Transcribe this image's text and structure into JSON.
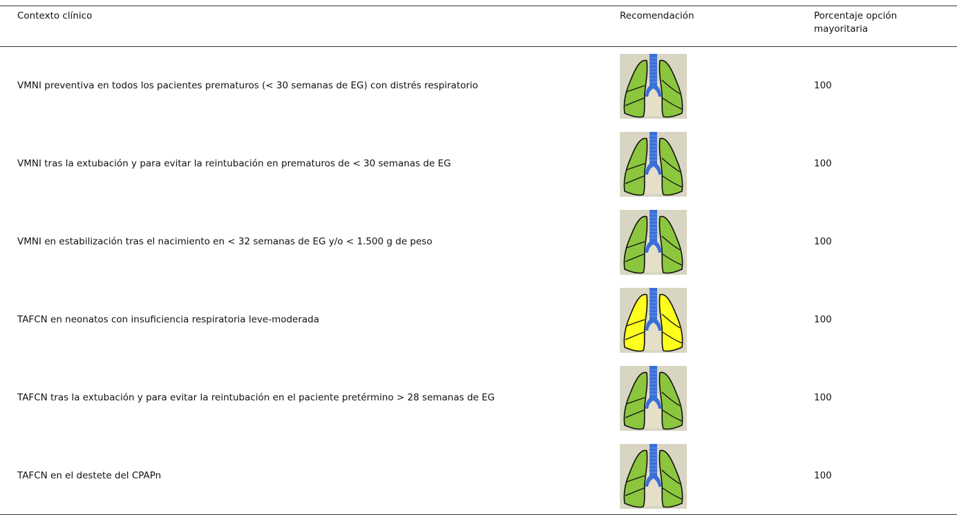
{
  "table": {
    "header": [
      "Contexto clínico",
      "Recomendación",
      "Porcentaje opción mayoritaria"
    ],
    "rows": [
      {
        "context": "VMNI preventiva en todos los pacientes prematuros (< 30 semanas de EG) con distrés respiratorio",
        "icon_color": "#8cc63f",
        "percentage": 100
      },
      {
        "context": "VMNI tras la extubación y para evitar la reintubación en prematuros de < 30 semanas de EG",
        "icon_color": "#8cc63f",
        "percentage": 100
      },
      {
        "context": "VMNI en estabilización tras el nacimiento en < 32 semanas de EG y/o < 1.500 g de peso",
        "icon_color": "#8cc63f",
        "percentage": 100
      },
      {
        "context": "TAFCN en neonatos con insuficiencia respiratoria leve-moderada",
        "icon_color": "#ffff1e",
        "percentage": 100
      },
      {
        "context": "TAFCN tras la extubación y para evitar la reintubación en el paciente pretérmino > 28 semanas de EG",
        "icon_color": "#8cc63f",
        "percentage": 100
      },
      {
        "context": "TAFCN en el destete del CPAPn",
        "icon_color": "#8cc63f",
        "percentage": 100
      }
    ]
  }
}
